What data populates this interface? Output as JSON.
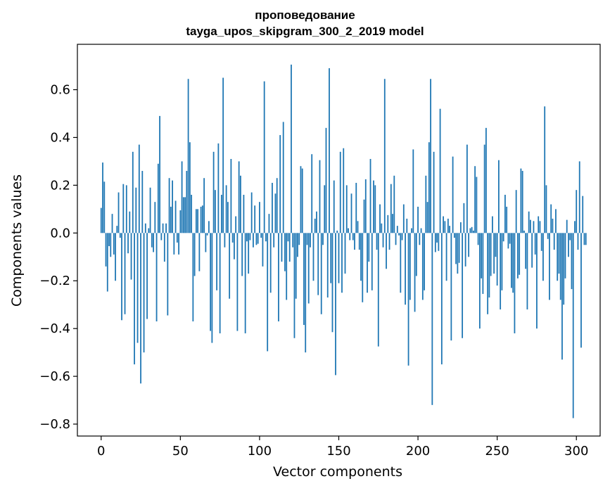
{
  "chart_data": {
    "type": "bar",
    "title_line1": "проповедование",
    "title_line2": "tayga_upos_skipgram_300_2_2019 model",
    "xlabel": "Vector components",
    "ylabel": "Components values",
    "xlim": [
      -15,
      315
    ],
    "ylim": [
      -0.85,
      0.79
    ],
    "xticks": [
      0,
      50,
      100,
      150,
      200,
      250,
      300
    ],
    "xtick_labels": [
      "0",
      "50",
      "100",
      "150",
      "200",
      "250",
      "300"
    ],
    "yticks": [
      -0.8,
      -0.6,
      -0.4,
      -0.2,
      0.0,
      0.2,
      0.4,
      0.6
    ],
    "ytick_labels": [
      "−0.8",
      "−0.6",
      "−0.4",
      "−0.2",
      "0.0",
      "0.2",
      "0.4",
      "0.6"
    ],
    "bar_color": "#1f77b4",
    "grid": false,
    "legend": false,
    "values": [
      0.105,
      0.295,
      0.215,
      -0.14,
      -0.245,
      -0.055,
      -0.1,
      0.08,
      -0.09,
      -0.2,
      0.03,
      0.17,
      -0.02,
      -0.365,
      0.205,
      -0.34,
      0.2,
      -0.085,
      0.09,
      -0.195,
      0.34,
      -0.55,
      0.19,
      -0.46,
      0.37,
      -0.63,
      0.26,
      -0.5,
      0.04,
      -0.36,
      0.02,
      0.19,
      -0.06,
      -0.08,
      0.13,
      -0.37,
      0.29,
      0.49,
      -0.03,
      0.04,
      -0.12,
      0.04,
      -0.345,
      0.23,
      0.11,
      0.22,
      -0.09,
      0.135,
      -0.04,
      -0.09,
      0.095,
      0.3,
      0.15,
      0.15,
      0.26,
      0.645,
      0.38,
      0.16,
      -0.37,
      -0.18,
      0.1,
      0.1,
      -0.16,
      0.11,
      0.115,
      0.23,
      -0.08,
      -0.01,
      0.05,
      -0.41,
      -0.46,
      0.34,
      0.18,
      -0.24,
      0.375,
      -0.42,
      0.16,
      0.65,
      -0.06,
      0.2,
      0.13,
      -0.275,
      0.31,
      -0.04,
      -0.11,
      0.07,
      -0.41,
      0.3,
      0.24,
      -0.18,
      0.16,
      -0.42,
      -0.035,
      -0.17,
      -0.03,
      0.17,
      -0.06,
      0.115,
      -0.05,
      -0.045,
      0.13,
      -0.02,
      -0.14,
      0.635,
      -0.035,
      -0.495,
      0.08,
      -0.25,
      0.21,
      -0.06,
      0.165,
      0.23,
      -0.37,
      0.41,
      -0.12,
      0.465,
      -0.16,
      -0.28,
      -0.035,
      -0.12,
      0.705,
      -0.06,
      -0.44,
      -0.275,
      -0.1,
      -0.05,
      0.28,
      0.27,
      -0.385,
      -0.5,
      -0.05,
      -0.295,
      -0.06,
      0.33,
      -0.2,
      0.06,
      0.09,
      -0.26,
      0.305,
      -0.34,
      -0.05,
      0.2,
      0.44,
      -0.27,
      0.69,
      -0.21,
      -0.415,
      0.22,
      -0.595,
      0.01,
      -0.21,
      0.34,
      -0.25,
      0.355,
      -0.17,
      0.2,
      0.02,
      -0.03,
      0.165,
      -0.03,
      -0.07,
      0.21,
      0.05,
      -0.07,
      -0.2,
      -0.29,
      0.14,
      0.225,
      -0.25,
      -0.12,
      0.31,
      -0.24,
      0.22,
      0.2,
      -0.07,
      -0.475,
      0.12,
      0.04,
      -0.06,
      0.645,
      -0.15,
      0.075,
      -0.07,
      0.205,
      0.08,
      0.24,
      -0.05,
      0.03,
      -0.01,
      -0.25,
      -0.03,
      0.12,
      -0.3,
      0.06,
      -0.555,
      -0.28,
      0.02,
      0.35,
      -0.33,
      -0.18,
      0.11,
      -0.05,
      0.02,
      -0.28,
      -0.24,
      0.24,
      0.13,
      0.38,
      0.645,
      -0.72,
      0.34,
      -0.08,
      -0.04,
      -0.075,
      0.52,
      -0.55,
      0.07,
      0.05,
      -0.2,
      0.06,
      0.03,
      -0.45,
      0.32,
      -0.02,
      -0.13,
      -0.17,
      -0.125,
      0.045,
      -0.44,
      0.125,
      -0.14,
      0.37,
      -0.1,
      0.02,
      0.025,
      0.01,
      0.28,
      0.235,
      -0.05,
      -0.4,
      -0.19,
      -0.255,
      0.37,
      0.44,
      -0.34,
      -0.27,
      -0.18,
      0.07,
      -0.17,
      -0.1,
      -0.22,
      0.305,
      -0.32,
      -0.24,
      -0.035,
      0.16,
      0.11,
      -0.065,
      -0.045,
      -0.23,
      -0.25,
      -0.42,
      0.18,
      -0.19,
      -0.175,
      0.27,
      0.26,
      0.01,
      -0.15,
      -0.32,
      0.09,
      0.055,
      -0.145,
      0.05,
      -0.09,
      -0.4,
      0.07,
      0.05,
      -0.075,
      -0.2,
      0.53,
      0.2,
      -0.025,
      -0.28,
      0.12,
      0.06,
      -0.07,
      0.1,
      -0.2,
      -0.17,
      -0.28,
      -0.53,
      -0.3,
      -0.19,
      0.055,
      -0.1,
      -0.03,
      -0.235,
      -0.775,
      0.05,
      0.18,
      -0.07,
      0.3,
      -0.48,
      0.155,
      -0.05,
      -0.05
    ]
  }
}
